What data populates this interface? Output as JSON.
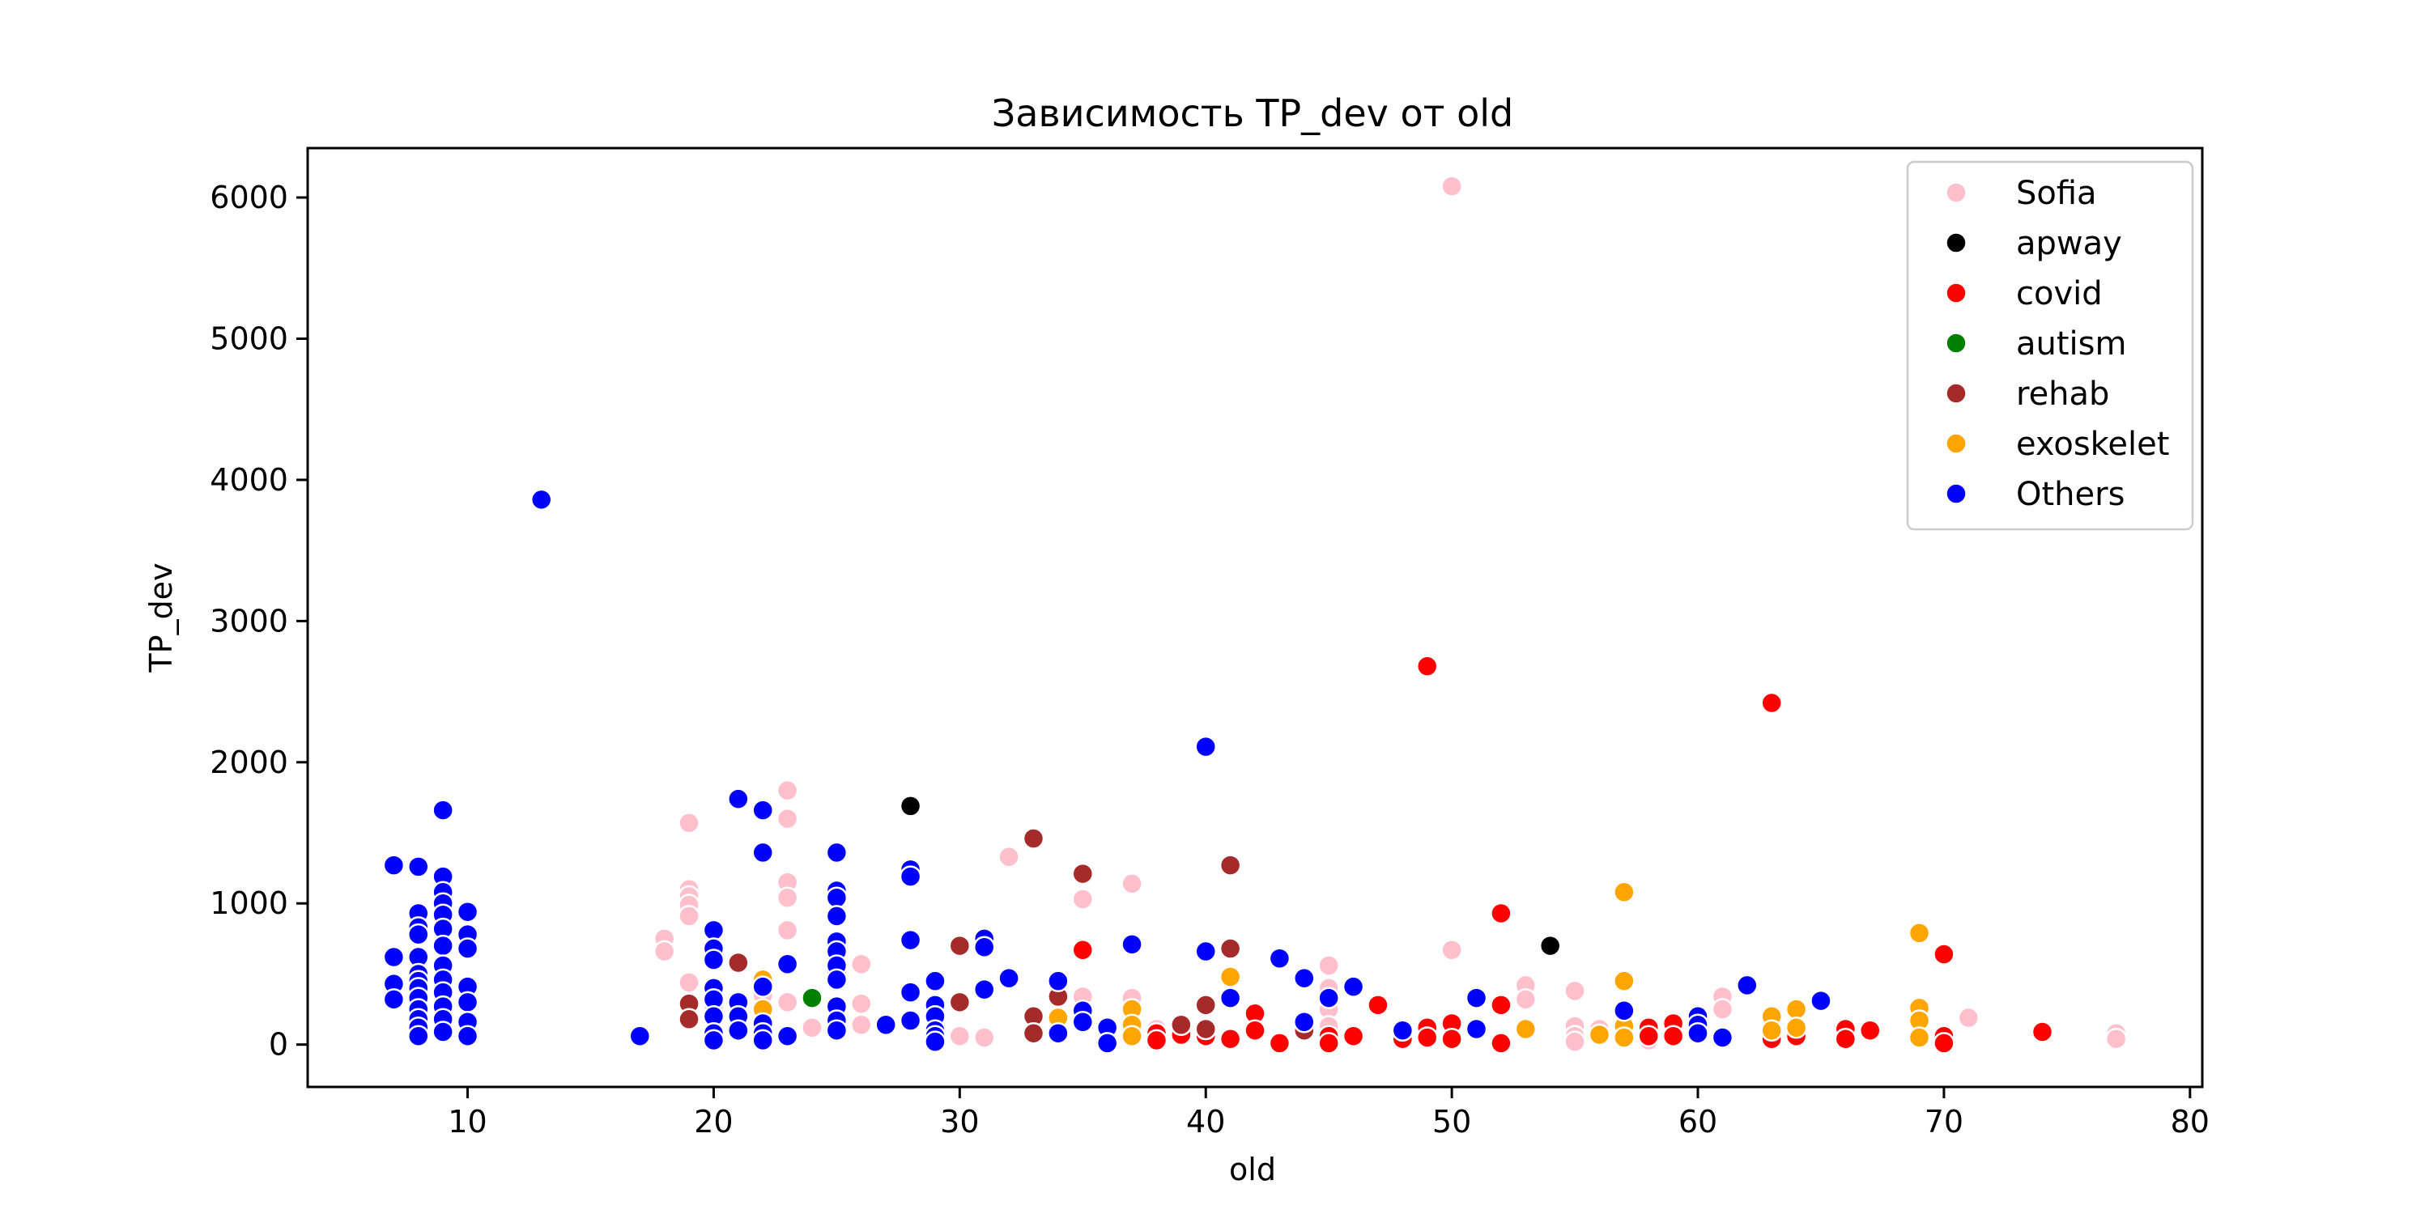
{
  "chart_data": {
    "type": "scatter",
    "title": "Зависимость TP_dev от old",
    "xlabel": "old",
    "ylabel": "TP_dev",
    "xlim": [
      3.5,
      80.5
    ],
    "ylim": [
      -300,
      6350
    ],
    "xticks": [
      10,
      20,
      30,
      40,
      50,
      60,
      70,
      80
    ],
    "yticks": [
      0,
      1000,
      2000,
      3000,
      4000,
      5000,
      6000
    ],
    "grid": false,
    "legend_position": "top-right",
    "series": [
      {
        "name": "Sofia",
        "color": "#ffc0cb",
        "points": [
          [
            18,
            750
          ],
          [
            18,
            660
          ],
          [
            19,
            1570
          ],
          [
            19,
            1100
          ],
          [
            19,
            1050
          ],
          [
            19,
            990
          ],
          [
            19,
            910
          ],
          [
            19,
            440
          ],
          [
            20,
            270
          ],
          [
            22,
            350
          ],
          [
            23,
            1800
          ],
          [
            23,
            1600
          ],
          [
            23,
            1150
          ],
          [
            23,
            1040
          ],
          [
            23,
            810
          ],
          [
            23,
            300
          ],
          [
            24,
            120
          ],
          [
            25,
            500
          ],
          [
            25,
            270
          ],
          [
            26,
            570
          ],
          [
            26,
            290
          ],
          [
            26,
            140
          ],
          [
            30,
            60
          ],
          [
            31,
            50
          ],
          [
            32,
            1330
          ],
          [
            35,
            1030
          ],
          [
            35,
            340
          ],
          [
            37,
            1140
          ],
          [
            37,
            330
          ],
          [
            38,
            110
          ],
          [
            40,
            80
          ],
          [
            45,
            560
          ],
          [
            45,
            400
          ],
          [
            45,
            250
          ],
          [
            45,
            130
          ],
          [
            49,
            60
          ],
          [
            50,
            6080
          ],
          [
            50,
            670
          ],
          [
            52,
            280
          ],
          [
            53,
            420
          ],
          [
            53,
            320
          ],
          [
            55,
            380
          ],
          [
            55,
            130
          ],
          [
            55,
            60
          ],
          [
            55,
            20
          ],
          [
            56,
            110
          ],
          [
            58,
            30
          ],
          [
            61,
            340
          ],
          [
            61,
            250
          ],
          [
            63,
            70
          ],
          [
            64,
            130
          ],
          [
            71,
            190
          ],
          [
            77,
            80
          ],
          [
            77,
            40
          ]
        ]
      },
      {
        "name": "apway",
        "color": "#000000",
        "points": [
          [
            28,
            1690
          ],
          [
            54,
            700
          ]
        ]
      },
      {
        "name": "covid",
        "color": "#ff0000",
        "points": [
          [
            25,
            510
          ],
          [
            35,
            670
          ],
          [
            38,
            80
          ],
          [
            38,
            30
          ],
          [
            39,
            70
          ],
          [
            40,
            60
          ],
          [
            41,
            40
          ],
          [
            42,
            220
          ],
          [
            42,
            100
          ],
          [
            43,
            10
          ],
          [
            45,
            60
          ],
          [
            45,
            10
          ],
          [
            46,
            60
          ],
          [
            47,
            280
          ],
          [
            48,
            80
          ],
          [
            48,
            40
          ],
          [
            49,
            2680
          ],
          [
            49,
            120
          ],
          [
            49,
            50
          ],
          [
            50,
            150
          ],
          [
            50,
            40
          ],
          [
            51,
            100
          ],
          [
            52,
            930
          ],
          [
            52,
            280
          ],
          [
            52,
            10
          ],
          [
            53,
            100
          ],
          [
            57,
            120
          ],
          [
            57,
            50
          ],
          [
            58,
            120
          ],
          [
            58,
            60
          ],
          [
            59,
            150
          ],
          [
            59,
            60
          ],
          [
            60,
            80
          ],
          [
            63,
            2420
          ],
          [
            63,
            40
          ],
          [
            64,
            60
          ],
          [
            66,
            110
          ],
          [
            66,
            40
          ],
          [
            67,
            100
          ],
          [
            70,
            640
          ],
          [
            70,
            60
          ],
          [
            70,
            10
          ],
          [
            74,
            90
          ]
        ]
      },
      {
        "name": "autism",
        "color": "#008000",
        "points": [
          [
            24,
            330
          ]
        ]
      },
      {
        "name": "rehab",
        "color": "#a52a2a",
        "points": [
          [
            19,
            290
          ],
          [
            19,
            180
          ],
          [
            21,
            580
          ],
          [
            30,
            700
          ],
          [
            30,
            300
          ],
          [
            33,
            1460
          ],
          [
            33,
            200
          ],
          [
            33,
            80
          ],
          [
            34,
            340
          ],
          [
            35,
            1210
          ],
          [
            39,
            140
          ],
          [
            40,
            280
          ],
          [
            40,
            110
          ],
          [
            41,
            1270
          ],
          [
            41,
            680
          ],
          [
            44,
            100
          ]
        ]
      },
      {
        "name": "exoskelet",
        "color": "#ffa500",
        "points": [
          [
            22,
            460
          ],
          [
            22,
            250
          ],
          [
            22,
            30
          ],
          [
            34,
            190
          ],
          [
            37,
            250
          ],
          [
            37,
            140
          ],
          [
            37,
            60
          ],
          [
            41,
            480
          ],
          [
            53,
            110
          ],
          [
            56,
            70
          ],
          [
            57,
            1080
          ],
          [
            57,
            450
          ],
          [
            57,
            130
          ],
          [
            57,
            50
          ],
          [
            63,
            200
          ],
          [
            63,
            100
          ],
          [
            64,
            250
          ],
          [
            64,
            120
          ],
          [
            69,
            790
          ],
          [
            69,
            260
          ],
          [
            69,
            170
          ],
          [
            69,
            50
          ]
        ]
      },
      {
        "name": "Others",
        "color": "#0000ff",
        "points": [
          [
            7,
            1270
          ],
          [
            7,
            620
          ],
          [
            7,
            430
          ],
          [
            7,
            320
          ],
          [
            8,
            1260
          ],
          [
            8,
            930
          ],
          [
            8,
            830
          ],
          [
            8,
            780
          ],
          [
            8,
            620
          ],
          [
            8,
            500
          ],
          [
            8,
            450
          ],
          [
            8,
            400
          ],
          [
            8,
            330
          ],
          [
            8,
            250
          ],
          [
            8,
            180
          ],
          [
            8,
            120
          ],
          [
            8,
            60
          ],
          [
            9,
            1660
          ],
          [
            9,
            1190
          ],
          [
            9,
            1080
          ],
          [
            9,
            1000
          ],
          [
            9,
            920
          ],
          [
            9,
            820
          ],
          [
            9,
            700
          ],
          [
            9,
            560
          ],
          [
            9,
            460
          ],
          [
            9,
            370
          ],
          [
            9,
            270
          ],
          [
            9,
            180
          ],
          [
            9,
            90
          ],
          [
            10,
            940
          ],
          [
            10,
            780
          ],
          [
            10,
            680
          ],
          [
            10,
            410
          ],
          [
            10,
            300
          ],
          [
            10,
            160
          ],
          [
            10,
            60
          ],
          [
            13,
            3860
          ],
          [
            17,
            60
          ],
          [
            20,
            810
          ],
          [
            20,
            680
          ],
          [
            20,
            600
          ],
          [
            20,
            400
          ],
          [
            20,
            320
          ],
          [
            20,
            200
          ],
          [
            20,
            80
          ],
          [
            20,
            30
          ],
          [
            21,
            1740
          ],
          [
            21,
            300
          ],
          [
            21,
            200
          ],
          [
            21,
            100
          ],
          [
            22,
            1660
          ],
          [
            22,
            1360
          ],
          [
            22,
            410
          ],
          [
            22,
            150
          ],
          [
            22,
            80
          ],
          [
            22,
            30
          ],
          [
            23,
            570
          ],
          [
            23,
            60
          ],
          [
            25,
            1360
          ],
          [
            25,
            1090
          ],
          [
            25,
            1040
          ],
          [
            25,
            910
          ],
          [
            25,
            730
          ],
          [
            25,
            660
          ],
          [
            25,
            560
          ],
          [
            25,
            460
          ],
          [
            25,
            270
          ],
          [
            25,
            170
          ],
          [
            25,
            100
          ],
          [
            27,
            140
          ],
          [
            28,
            1240
          ],
          [
            28,
            1190
          ],
          [
            28,
            740
          ],
          [
            28,
            370
          ],
          [
            28,
            170
          ],
          [
            29,
            450
          ],
          [
            29,
            280
          ],
          [
            29,
            200
          ],
          [
            29,
            100
          ],
          [
            29,
            60
          ],
          [
            29,
            20
          ],
          [
            31,
            750
          ],
          [
            31,
            690
          ],
          [
            31,
            390
          ],
          [
            32,
            470
          ],
          [
            34,
            450
          ],
          [
            34,
            80
          ],
          [
            35,
            240
          ],
          [
            35,
            160
          ],
          [
            36,
            120
          ],
          [
            36,
            10
          ],
          [
            37,
            710
          ],
          [
            40,
            2110
          ],
          [
            40,
            660
          ],
          [
            41,
            330
          ],
          [
            43,
            610
          ],
          [
            44,
            470
          ],
          [
            44,
            160
          ],
          [
            45,
            330
          ],
          [
            46,
            410
          ],
          [
            48,
            100
          ],
          [
            51,
            330
          ],
          [
            51,
            110
          ],
          [
            57,
            240
          ],
          [
            60,
            200
          ],
          [
            60,
            140
          ],
          [
            60,
            80
          ],
          [
            61,
            50
          ],
          [
            62,
            420
          ],
          [
            65,
            310
          ]
        ]
      }
    ]
  }
}
